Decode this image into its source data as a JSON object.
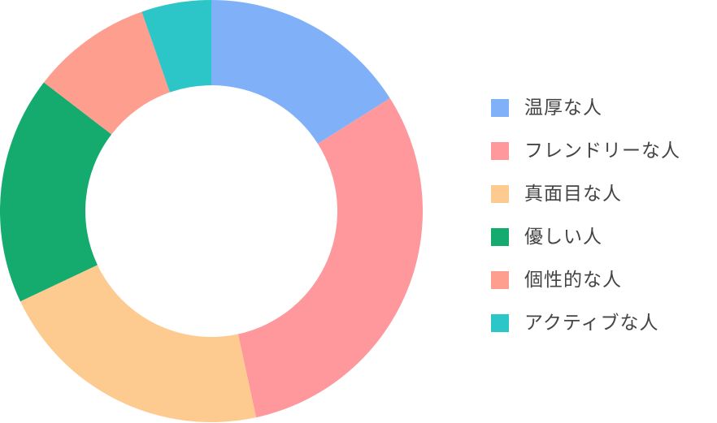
{
  "chart_data": {
    "type": "pie",
    "variant": "donut",
    "categories": [
      "温厚な人",
      "フレンドリーな人",
      "真面目な人",
      "優しい人",
      "個性的な人",
      "アクティブな人"
    ],
    "values": [
      16.5,
      31.5,
      22.0,
      18.0,
      9.5,
      5.5
    ],
    "colors": [
      "#80b1f8",
      "#ff989c",
      "#fdcb90",
      "#15ab6f",
      "#fd9e8e",
      "#2cc5c8"
    ],
    "start": "12 o'clock",
    "direction": "clockwise",
    "legend": "right",
    "title": ""
  }
}
